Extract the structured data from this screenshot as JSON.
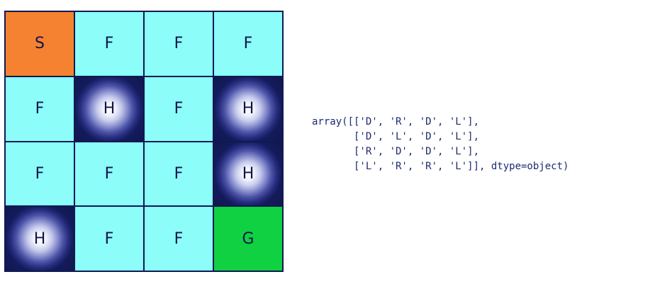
{
  "grid": {
    "cells": [
      [
        "S",
        "F",
        "F",
        "F"
      ],
      [
        "F",
        "H",
        "F",
        "H"
      ],
      [
        "F",
        "F",
        "F",
        "H"
      ],
      [
        "H",
        "F",
        "F",
        "G"
      ]
    ],
    "colors": {
      "S": "#f58231",
      "F": "#8cfdf8",
      "H": "#10174f",
      "G": "#0fd141",
      "border": "#0f1a52"
    }
  },
  "code_output": {
    "lines": [
      "array([['D', 'R', 'D', 'L'],",
      "       ['D', 'L', 'D', 'L'],",
      "       ['R', 'D', 'D', 'L'],",
      "       ['L', 'R', 'R', 'L']], dtype=object)"
    ]
  }
}
